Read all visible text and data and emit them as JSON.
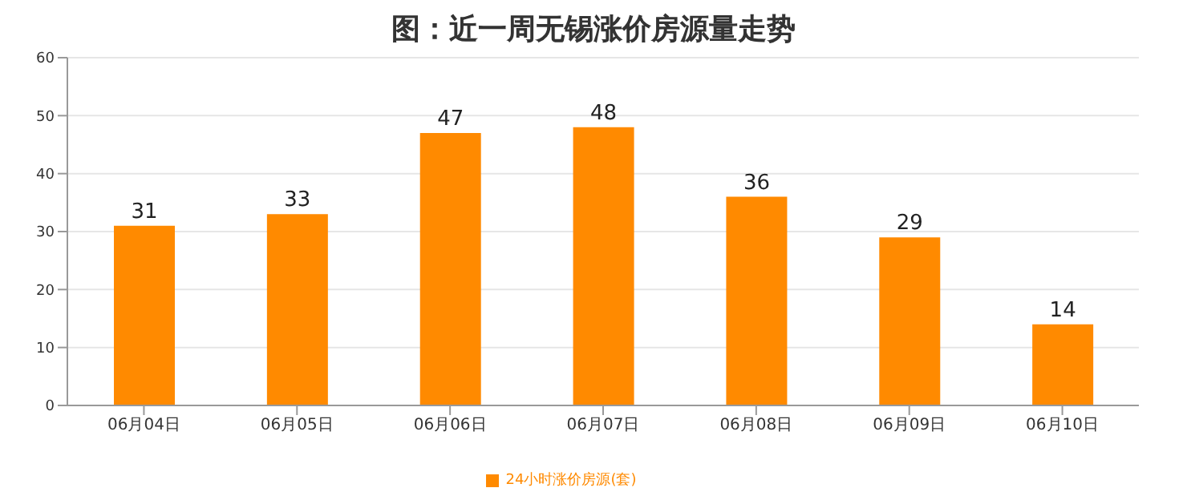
{
  "chart_data": {
    "type": "bar",
    "title": "图：近一周无锡涨价房源量走势",
    "categories": [
      "06月04日",
      "06月05日",
      "06月06日",
      "06月07日",
      "06月08日",
      "06月09日",
      "06月10日"
    ],
    "series": [
      {
        "name": "24小时涨价房源(套)",
        "color": "#ff8a00",
        "values": [
          31,
          33,
          47,
          48,
          36,
          29,
          14
        ]
      }
    ],
    "ylim": [
      0,
      60
    ],
    "yticks": [
      0,
      10,
      20,
      30,
      40,
      50,
      60
    ],
    "grid": "y",
    "legend": "bottom",
    "data_labels": true
  }
}
